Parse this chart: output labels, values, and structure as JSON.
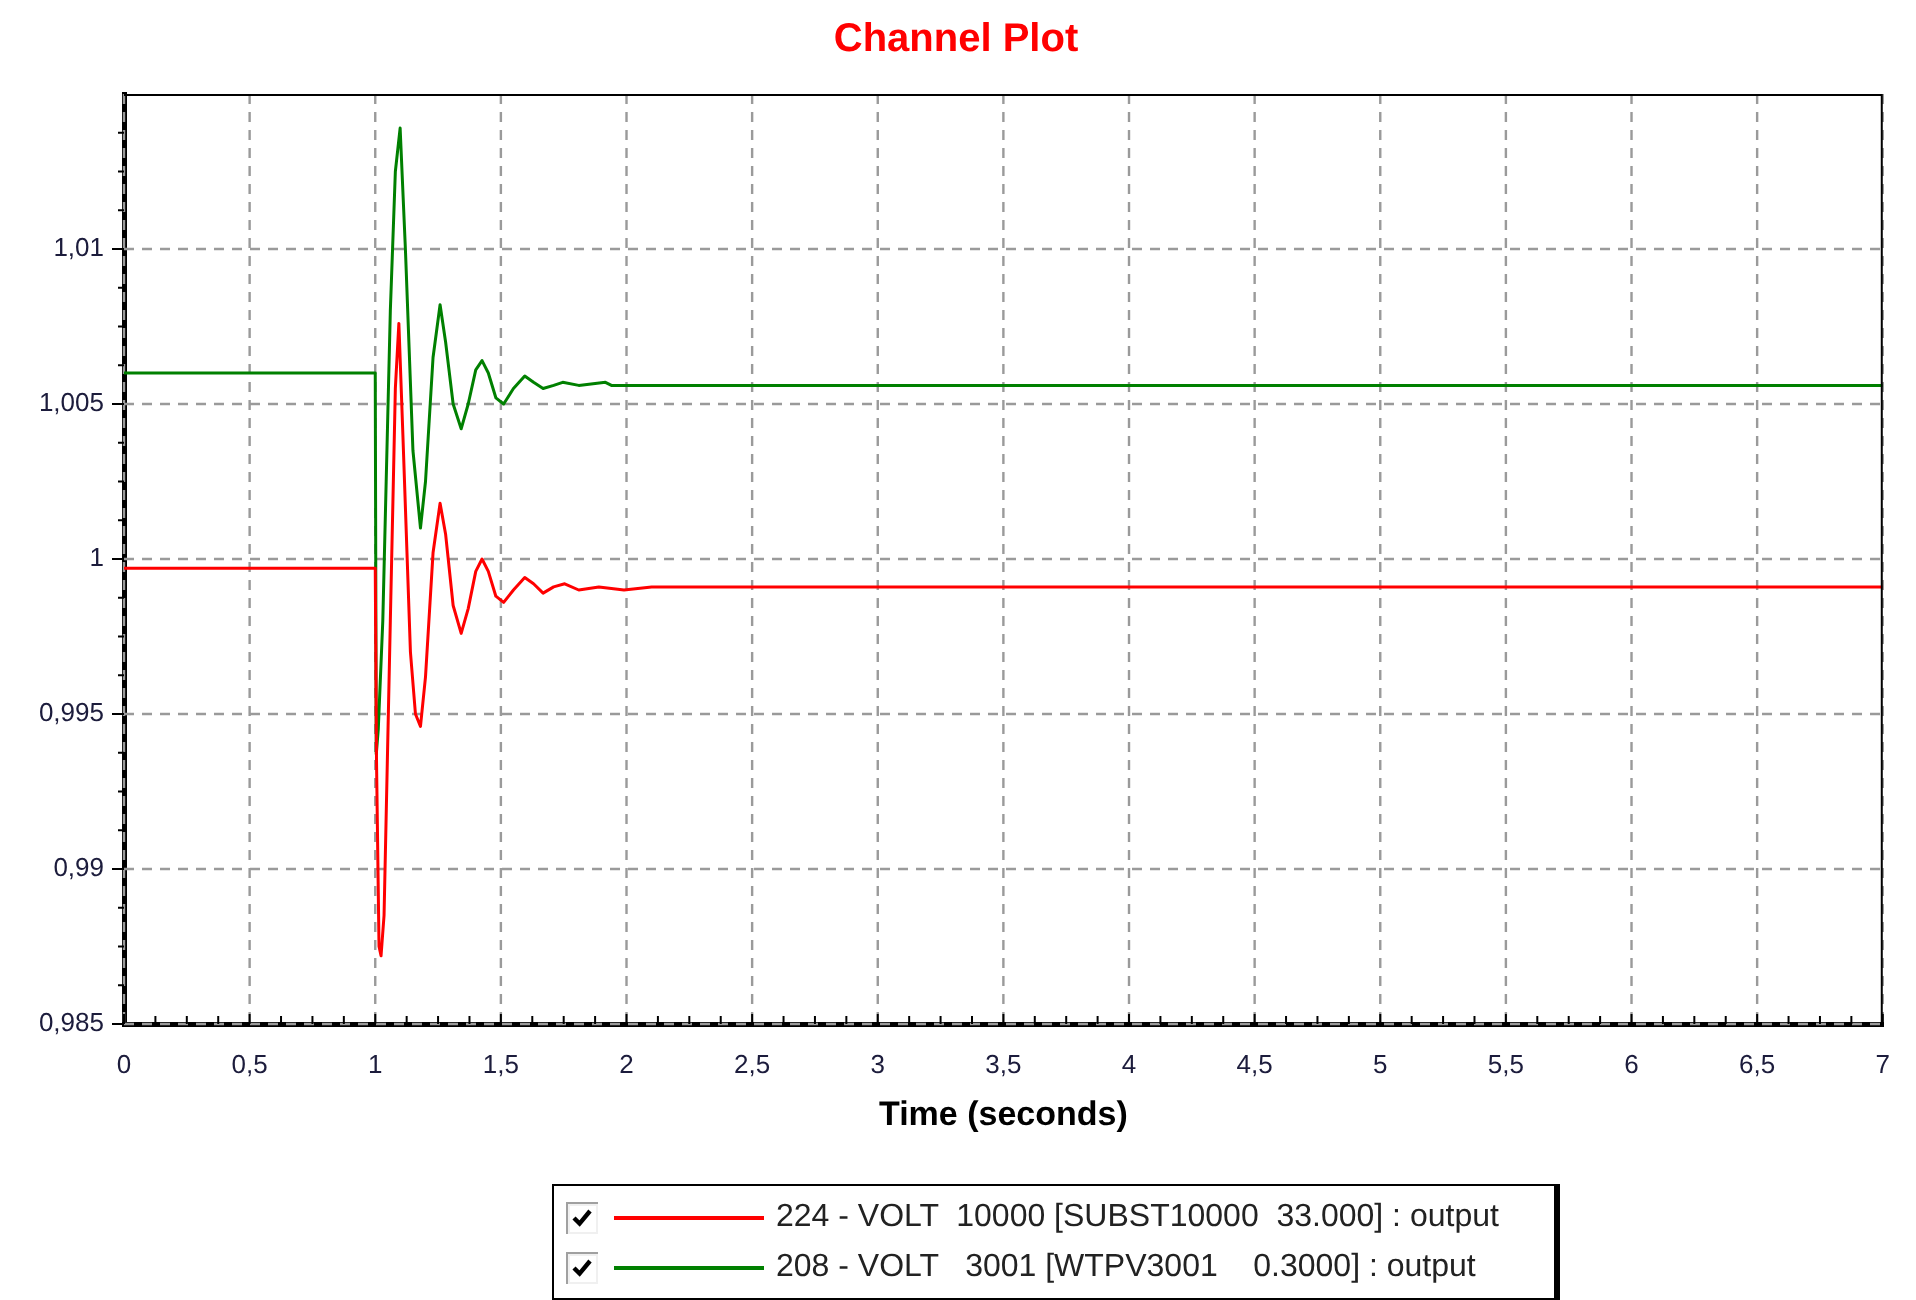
{
  "chart_data": {
    "type": "line",
    "title": "Channel Plot",
    "xlabel": "Time (seconds)",
    "xlim": [
      0,
      7
    ],
    "xticks": [
      0,
      {
        "value": 0.125,
        "label": null
      },
      {
        "value": 0.25,
        "label": null
      },
      {
        "value": 0.375,
        "label": null
      },
      {
        "value": 0.5,
        "label": "0,5"
      },
      {
        "value": 0.625,
        "label": null
      },
      {
        "value": 0.75,
        "label": null
      },
      {
        "value": 0.875,
        "label": null
      },
      1,
      {
        "value": 1.125,
        "label": null
      },
      {
        "value": 1.25,
        "label": null
      },
      {
        "value": 1.375,
        "label": null
      },
      {
        "value": 1.5,
        "label": "1,5"
      },
      {
        "value": 1.625,
        "label": null
      },
      {
        "value": 1.75,
        "label": null
      },
      {
        "value": 1.875,
        "label": null
      },
      2,
      {
        "value": 2.125,
        "label": null
      },
      {
        "value": 2.25,
        "label": null
      },
      {
        "value": 2.375,
        "label": null
      },
      {
        "value": 2.5,
        "label": "2,5"
      },
      {
        "value": 2.625,
        "label": null
      },
      {
        "value": 2.75,
        "label": null
      },
      {
        "value": 2.875,
        "label": null
      },
      3,
      {
        "value": 3.125,
        "label": null
      },
      {
        "value": 3.25,
        "label": null
      },
      {
        "value": 3.375,
        "label": null
      },
      {
        "value": 3.5,
        "label": "3,5"
      },
      {
        "value": 3.625,
        "label": null
      },
      {
        "value": 3.75,
        "label": null
      },
      {
        "value": 3.875,
        "label": null
      },
      4,
      {
        "value": 4.125,
        "label": null
      },
      {
        "value": 4.25,
        "label": null
      },
      {
        "value": 4.375,
        "label": null
      },
      {
        "value": 4.5,
        "label": "4,5"
      },
      {
        "value": 4.625,
        "label": null
      },
      {
        "value": 4.75,
        "label": null
      },
      {
        "value": 4.875,
        "label": null
      },
      5,
      {
        "value": 5.125,
        "label": null
      },
      {
        "value": 5.25,
        "label": null
      },
      {
        "value": 5.375,
        "label": null
      },
      {
        "value": 5.5,
        "label": "5,5"
      },
      {
        "value": 5.625,
        "label": null
      },
      {
        "value": 5.75,
        "label": null
      },
      {
        "value": 5.875,
        "label": null
      },
      6,
      {
        "value": 6.125,
        "label": null
      },
      {
        "value": 6.25,
        "label": null
      },
      {
        "value": 6.375,
        "label": null
      },
      {
        "value": 6.5,
        "label": "6,5"
      },
      {
        "value": 6.625,
        "label": null
      },
      {
        "value": 6.75,
        "label": null
      },
      {
        "value": 6.875,
        "label": null
      },
      7
    ],
    "ylim": [
      0.985,
      1.015
    ],
    "yticks": [
      {
        "value": 0.985,
        "label": "0,985"
      },
      {
        "value": 0.98625,
        "label": null
      },
      {
        "value": 0.9875,
        "label": null
      },
      {
        "value": 0.98875,
        "label": null
      },
      {
        "value": 0.99,
        "label": "0,99"
      },
      {
        "value": 0.99125,
        "label": null
      },
      {
        "value": 0.9925,
        "label": null
      },
      {
        "value": 0.99375,
        "label": null
      },
      {
        "value": 0.995,
        "label": "0,995"
      },
      {
        "value": 0.99625,
        "label": null
      },
      {
        "value": 0.9975,
        "label": null
      },
      {
        "value": 0.99875,
        "label": null
      },
      1,
      {
        "value": 1.00125,
        "label": null
      },
      {
        "value": 1.0025,
        "label": null
      },
      {
        "value": 1.00375,
        "label": null
      },
      {
        "value": 1.005,
        "label": "1,005"
      },
      {
        "value": 1.00625,
        "label": null
      },
      {
        "value": 1.0075,
        "label": null
      },
      {
        "value": 1.00875,
        "label": null
      },
      {
        "value": 1.01,
        "label": "1,01"
      },
      {
        "value": 1.01125,
        "label": null
      },
      {
        "value": 1.0125,
        "label": null
      },
      {
        "value": 1.01375,
        "label": null
      }
    ],
    "grid": true,
    "legend": "bottom",
    "marker": "none",
    "line_style": "solid",
    "series": [
      {
        "name": "224 - VOLT  10000 [SUBST10000  33.000] : output",
        "color": "#ff0000",
        "x": [
          0,
          1,
          1.005,
          1.015,
          1.023,
          1.035,
          1.06,
          1.08,
          1.094,
          1.11,
          1.14,
          1.16,
          1.18,
          1.2,
          1.23,
          1.258,
          1.28,
          1.31,
          1.342,
          1.37,
          1.4,
          1.425,
          1.45,
          1.48,
          1.511,
          1.55,
          1.595,
          1.63,
          1.668,
          1.71,
          1.754,
          1.81,
          1.89,
          1.99,
          2.1,
          7
        ],
        "values": [
          0.9997,
          0.9997,
          0.9935,
          0.9875,
          0.9872,
          0.9885,
          0.998,
          1.0055,
          1.0076,
          1.004,
          0.997,
          0.995,
          0.9946,
          0.9962,
          1.0002,
          1.0018,
          1.0008,
          0.9985,
          0.9976,
          0.9984,
          0.9996,
          1.0,
          0.9996,
          0.9988,
          0.9986,
          0.999,
          0.9994,
          0.9992,
          0.9989,
          0.9991,
          0.9992,
          0.999,
          0.9991,
          0.999,
          0.9991,
          0.9991
        ]
      },
      {
        "name": "208 - VOLT   3001 [WTPV3001    0.3000] : output",
        "color": "#008000",
        "x": [
          0,
          1,
          1.004,
          1.012,
          1.03,
          1.06,
          1.08,
          1.099,
          1.12,
          1.15,
          1.18,
          1.2,
          1.23,
          1.258,
          1.28,
          1.31,
          1.342,
          1.37,
          1.4,
          1.425,
          1.45,
          1.48,
          1.511,
          1.55,
          1.595,
          1.63,
          1.668,
          1.71,
          1.746,
          1.81,
          1.916,
          1.94,
          7
        ],
        "values": [
          1.006,
          1.006,
          0.9937,
          0.9945,
          0.998,
          1.008,
          1.0125,
          1.0139,
          1.01,
          1.0035,
          1.001,
          1.0025,
          1.0065,
          1.0082,
          1.007,
          1.005,
          1.0042,
          1.005,
          1.0061,
          1.0064,
          1.006,
          1.0052,
          1.005,
          1.0055,
          1.0059,
          1.0057,
          1.0055,
          1.0056,
          1.0057,
          1.0056,
          1.0057,
          1.0056,
          1.0056
        ]
      }
    ]
  }
}
